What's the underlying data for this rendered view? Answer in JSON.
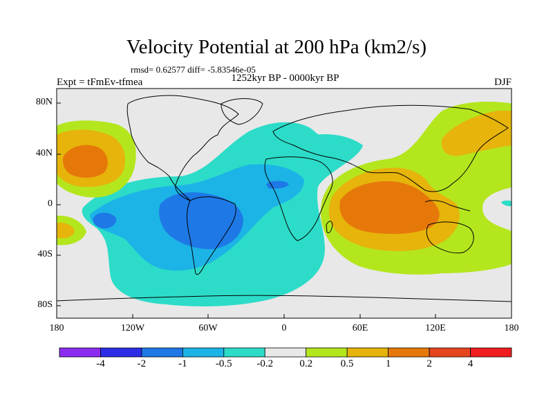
{
  "title": "Velocity Potential at 200 hPa (km2/s)",
  "stats": "rmsd= 0.62577 diff= -5.83546e-05",
  "expt": "Expt = tFmEv-tfmea",
  "period": "1252kyr BP - 0000kyr BP",
  "season": "DJF",
  "y_ticks": [
    "80N",
    "40N",
    "0",
    "40S",
    "80S"
  ],
  "x_ticks": [
    "180",
    "120W",
    "60W",
    "0",
    "60E",
    "120E",
    "180"
  ],
  "legend": {
    "labels": [
      "-4",
      "-2",
      "-1",
      "-0.5",
      "-0.2",
      "0.2",
      "0.5",
      "1",
      "2",
      "4"
    ],
    "colors": [
      "#8c2cf0",
      "#2c2ce6",
      "#1e78e6",
      "#1cb4e6",
      "#2cdcc8",
      "#e8e8e8",
      "#b4e61e",
      "#e6b40a",
      "#e6780a",
      "#e6461e",
      "#f01e1e"
    ]
  },
  "colors": {
    "neutral": "#e8e8e8",
    "neg_02": "#2cdcc8",
    "neg_05": "#1cb4e6",
    "neg_1": "#1e78e6",
    "pos_02": "#b4e61e",
    "pos_05": "#e6b40a",
    "pos_1": "#e6780a"
  }
}
